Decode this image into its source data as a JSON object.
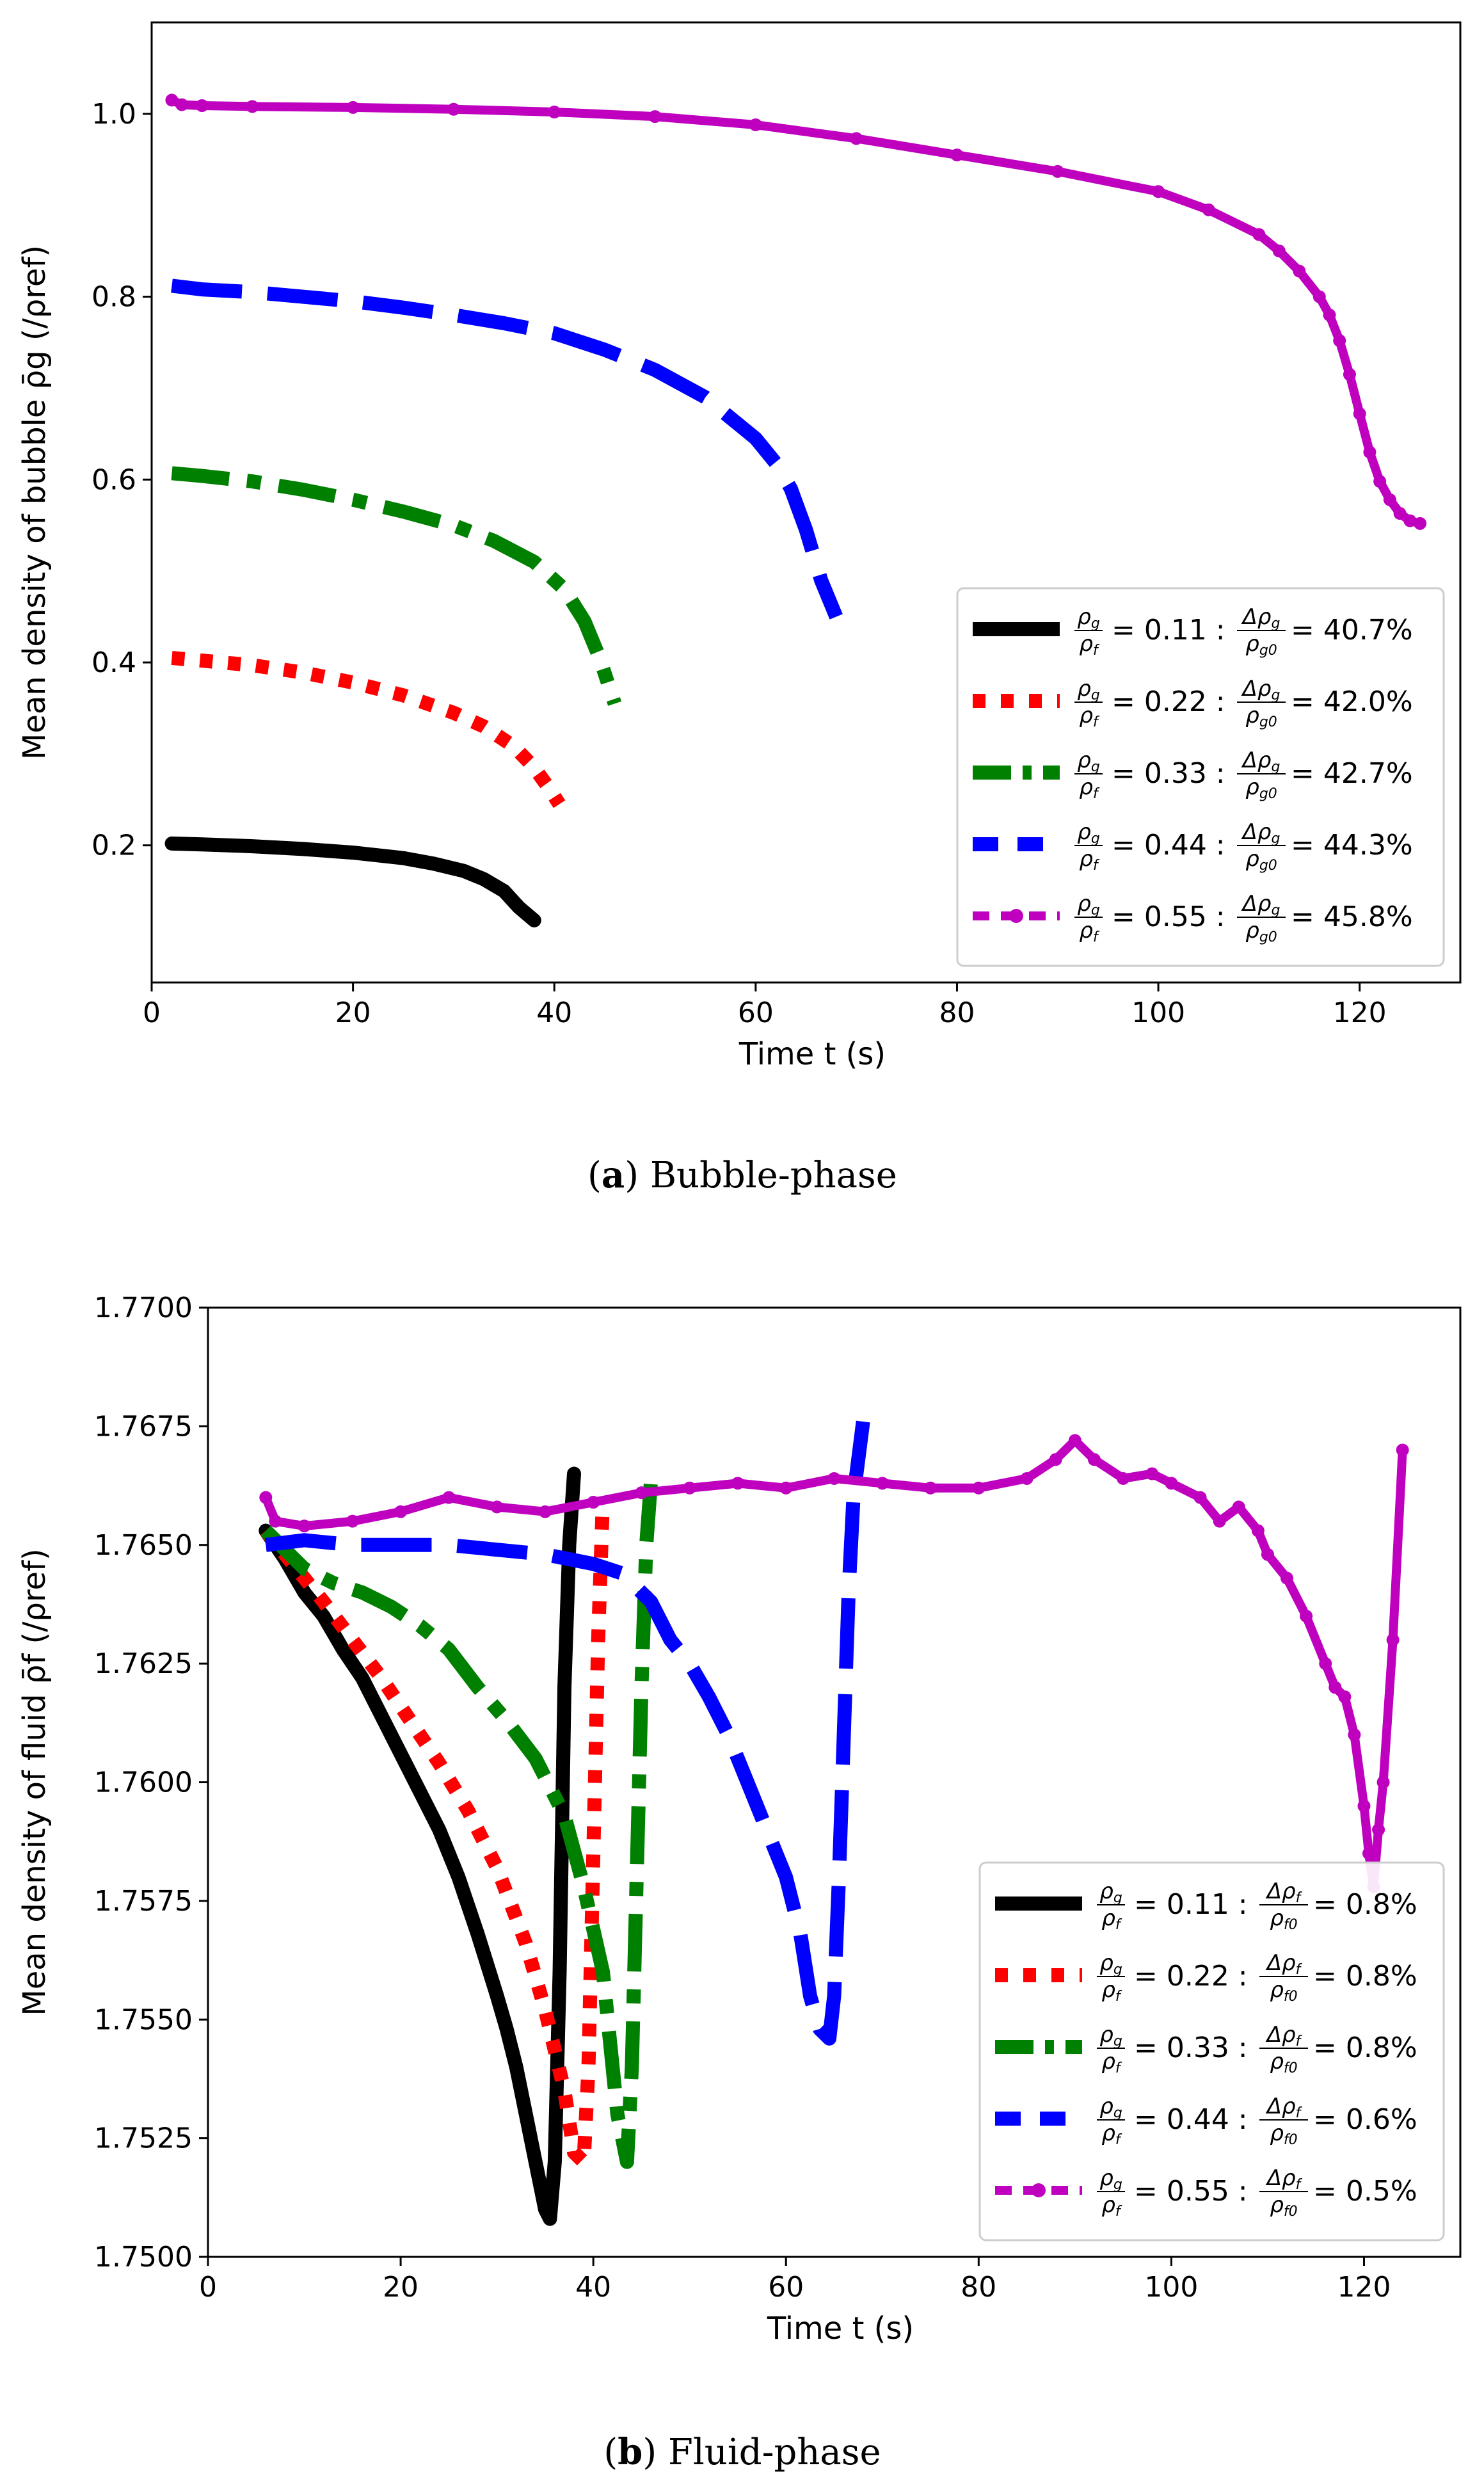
{
  "chart_data": [
    {
      "type": "line",
      "panel": "a",
      "caption_tag": "a",
      "caption_text": "Bubble-phase",
      "xlabel": "Time t (s)",
      "ylabel": "Mean density of bubble ρ̄g (/ρref)",
      "xlim": [
        0,
        130
      ],
      "ylim": [
        0.05,
        1.1
      ],
      "xticks": [
        0,
        20,
        40,
        60,
        80,
        100,
        120
      ],
      "xtick_labels": [
        "0",
        "20",
        "40",
        "60",
        "80",
        "100",
        "120"
      ],
      "yticks": [
        0.2,
        0.4,
        0.6,
        0.8,
        1.0
      ],
      "ytick_labels": [
        "0.2",
        "0.4",
        "0.6",
        "0.8",
        "1.0"
      ],
      "legend_position": "lower-right",
      "series": [
        {
          "name": "0.11",
          "ratio": "0.11",
          "delta_sym": "Δρg/ρg0",
          "delta": "40.7%",
          "color": "#000000",
          "style": "solid",
          "x": [
            2,
            5,
            10,
            15,
            20,
            25,
            28,
            31,
            33,
            35,
            36.5,
            38
          ],
          "y": [
            0.202,
            0.201,
            0.199,
            0.196,
            0.192,
            0.186,
            0.18,
            0.172,
            0.163,
            0.15,
            0.132,
            0.118
          ]
        },
        {
          "name": "0.22",
          "ratio": "0.22",
          "delta_sym": "Δρg/ρg0",
          "delta": "42.0%",
          "color": "#ff0000",
          "style": "dotted",
          "x": [
            2,
            5,
            10,
            15,
            20,
            25,
            30,
            33,
            36,
            38,
            39.5,
            40.5
          ],
          "y": [
            0.405,
            0.402,
            0.397,
            0.389,
            0.378,
            0.364,
            0.345,
            0.33,
            0.308,
            0.285,
            0.262,
            0.245
          ]
        },
        {
          "name": "0.33",
          "ratio": "0.33",
          "delta_sym": "Δρg/ρg0",
          "delta": "42.7%",
          "color": "#008000",
          "style": "dashdot",
          "x": [
            2,
            5,
            10,
            15,
            20,
            25,
            30,
            34,
            38,
            41,
            43,
            44.5,
            46
          ],
          "y": [
            0.607,
            0.604,
            0.598,
            0.589,
            0.578,
            0.565,
            0.55,
            0.533,
            0.51,
            0.48,
            0.445,
            0.405,
            0.355
          ]
        },
        {
          "name": "0.44",
          "ratio": "0.44",
          "delta_sym": "Δρg/ρg0",
          "delta": "44.3%",
          "color": "#0000ff",
          "style": "dashed",
          "x": [
            2,
            5,
            10,
            15,
            20,
            25,
            30,
            35,
            40,
            45,
            50,
            55,
            60,
            62,
            63.5,
            65,
            66.5,
            68
          ],
          "y": [
            0.812,
            0.808,
            0.805,
            0.8,
            0.795,
            0.788,
            0.78,
            0.771,
            0.76,
            0.742,
            0.72,
            0.69,
            0.645,
            0.618,
            0.59,
            0.545,
            0.49,
            0.45
          ]
        },
        {
          "name": "0.55",
          "ratio": "0.55",
          "delta_sym": "Δρg/ρg0",
          "delta": "45.8%",
          "color": "#bf00bf",
          "style": "dashdot-marker",
          "x": [
            2,
            3,
            5,
            10,
            20,
            30,
            40,
            50,
            60,
            70,
            80,
            90,
            100,
            105,
            110,
            112,
            114,
            116,
            117,
            118,
            119,
            120,
            121,
            122,
            123,
            124,
            125,
            126
          ],
          "y": [
            1.015,
            1.01,
            1.009,
            1.008,
            1.007,
            1.005,
            1.002,
            0.997,
            0.988,
            0.973,
            0.955,
            0.937,
            0.915,
            0.895,
            0.868,
            0.85,
            0.828,
            0.8,
            0.78,
            0.752,
            0.715,
            0.672,
            0.63,
            0.598,
            0.578,
            0.563,
            0.555,
            0.552
          ]
        }
      ]
    },
    {
      "type": "line",
      "panel": "b",
      "caption_tag": "b",
      "caption_text": "Fluid-phase",
      "xlabel": "Time t (s)",
      "ylabel": "Mean density of fluid ρ̄f (/ρref)",
      "xlim": [
        0,
        130
      ],
      "ylim": [
        1.75,
        1.77
      ],
      "xticks": [
        0,
        20,
        40,
        60,
        80,
        100,
        120
      ],
      "xtick_labels": [
        "0",
        "20",
        "40",
        "60",
        "80",
        "100",
        "120"
      ],
      "yticks": [
        1.75,
        1.7525,
        1.755,
        1.7575,
        1.76,
        1.7625,
        1.765,
        1.7675,
        1.77
      ],
      "ytick_labels": [
        "1.7500",
        "1.7525",
        "1.7550",
        "1.7575",
        "1.7600",
        "1.7625",
        "1.7650",
        "1.7675",
        "1.7700"
      ],
      "legend_position": "lower-right",
      "series": [
        {
          "name": "0.11",
          "ratio": "0.11",
          "delta_sym": "Δρf/ρf0",
          "delta": "0.8%",
          "color": "#000000",
          "style": "solid",
          "x": [
            6,
            8,
            10,
            12,
            14,
            16,
            18,
            20,
            22,
            24,
            26,
            28,
            30,
            31,
            32,
            33,
            34,
            35,
            35.5,
            36,
            36.5,
            37,
            37.5,
            38
          ],
          "y": [
            1.7653,
            1.7647,
            1.764,
            1.7635,
            1.7628,
            1.7622,
            1.7614,
            1.7606,
            1.7598,
            1.759,
            1.758,
            1.7568,
            1.7555,
            1.7548,
            1.754,
            1.753,
            1.752,
            1.751,
            1.7508,
            1.752,
            1.756,
            1.762,
            1.765,
            1.7665
          ]
        },
        {
          "name": "0.22",
          "ratio": "0.22",
          "delta_sym": "Δρf/ρf0",
          "delta": "0.8%",
          "color": "#ff0000",
          "style": "dotted",
          "x": [
            6,
            8,
            10,
            12,
            15,
            18,
            21,
            24,
            27,
            30,
            33,
            35,
            37,
            38,
            39,
            39.5,
            40,
            40.5,
            41
          ],
          "y": [
            1.7653,
            1.7648,
            1.7643,
            1.7638,
            1.763,
            1.7622,
            1.7613,
            1.7604,
            1.7594,
            1.7582,
            1.7566,
            1.7552,
            1.7535,
            1.7522,
            1.752,
            1.754,
            1.7585,
            1.763,
            1.766
          ]
        },
        {
          "name": "0.33",
          "ratio": "0.33",
          "delta_sym": "Δρf/ρf0",
          "delta": "0.8%",
          "color": "#008000",
          "style": "dashdot",
          "x": [
            6,
            8,
            10,
            13,
            16,
            19,
            22,
            25,
            28,
            31,
            34,
            37,
            39,
            41,
            42.5,
            43.5,
            44,
            44.5,
            45,
            45.5,
            46
          ],
          "y": [
            1.7653,
            1.7649,
            1.7645,
            1.7642,
            1.764,
            1.7637,
            1.7633,
            1.7628,
            1.762,
            1.7613,
            1.7605,
            1.7593,
            1.7578,
            1.756,
            1.753,
            1.752,
            1.754,
            1.758,
            1.762,
            1.765,
            1.7664
          ]
        },
        {
          "name": "0.44",
          "ratio": "0.44",
          "delta_sym": "Δρf/ρf0",
          "delta": "0.6%",
          "color": "#0000ff",
          "style": "dashed",
          "x": [
            6,
            10,
            15,
            20,
            25,
            30,
            35,
            40,
            43,
            46,
            48,
            50,
            52,
            54,
            56,
            58,
            60,
            61.5,
            62.5,
            63.5,
            64.5,
            65,
            65.5,
            66,
            66.5,
            67,
            68
          ],
          "y": [
            1.765,
            1.7651,
            1.765,
            1.765,
            1.765,
            1.7649,
            1.7648,
            1.7646,
            1.7644,
            1.7638,
            1.763,
            1.7625,
            1.7618,
            1.761,
            1.76,
            1.759,
            1.758,
            1.7568,
            1.7555,
            1.7548,
            1.7546,
            1.7555,
            1.758,
            1.761,
            1.764,
            1.766,
            1.7676
          ]
        },
        {
          "name": "0.55",
          "ratio": "0.55",
          "delta_sym": "Δρf/ρf0",
          "delta": "0.5%",
          "color": "#bf00bf",
          "style": "dashdot-marker",
          "x": [
            6,
            7,
            10,
            15,
            20,
            25,
            30,
            35,
            40,
            45,
            50,
            55,
            60,
            65,
            70,
            75,
            80,
            85,
            88,
            90,
            92,
            95,
            98,
            100,
            103,
            105,
            107,
            109,
            110,
            112,
            114,
            116,
            117,
            118,
            119,
            120,
            120.5,
            121,
            121.5,
            122,
            123,
            124
          ],
          "y": [
            1.766,
            1.7655,
            1.7654,
            1.7655,
            1.7657,
            1.766,
            1.7658,
            1.7657,
            1.7659,
            1.7661,
            1.7662,
            1.7663,
            1.7662,
            1.7664,
            1.7663,
            1.7662,
            1.7662,
            1.7664,
            1.7668,
            1.7672,
            1.7668,
            1.7664,
            1.7665,
            1.7663,
            1.766,
            1.7655,
            1.7658,
            1.7653,
            1.7648,
            1.7643,
            1.7635,
            1.7625,
            1.762,
            1.7618,
            1.761,
            1.7595,
            1.7585,
            1.7578,
            1.759,
            1.76,
            1.763,
            1.767
          ]
        }
      ]
    }
  ]
}
